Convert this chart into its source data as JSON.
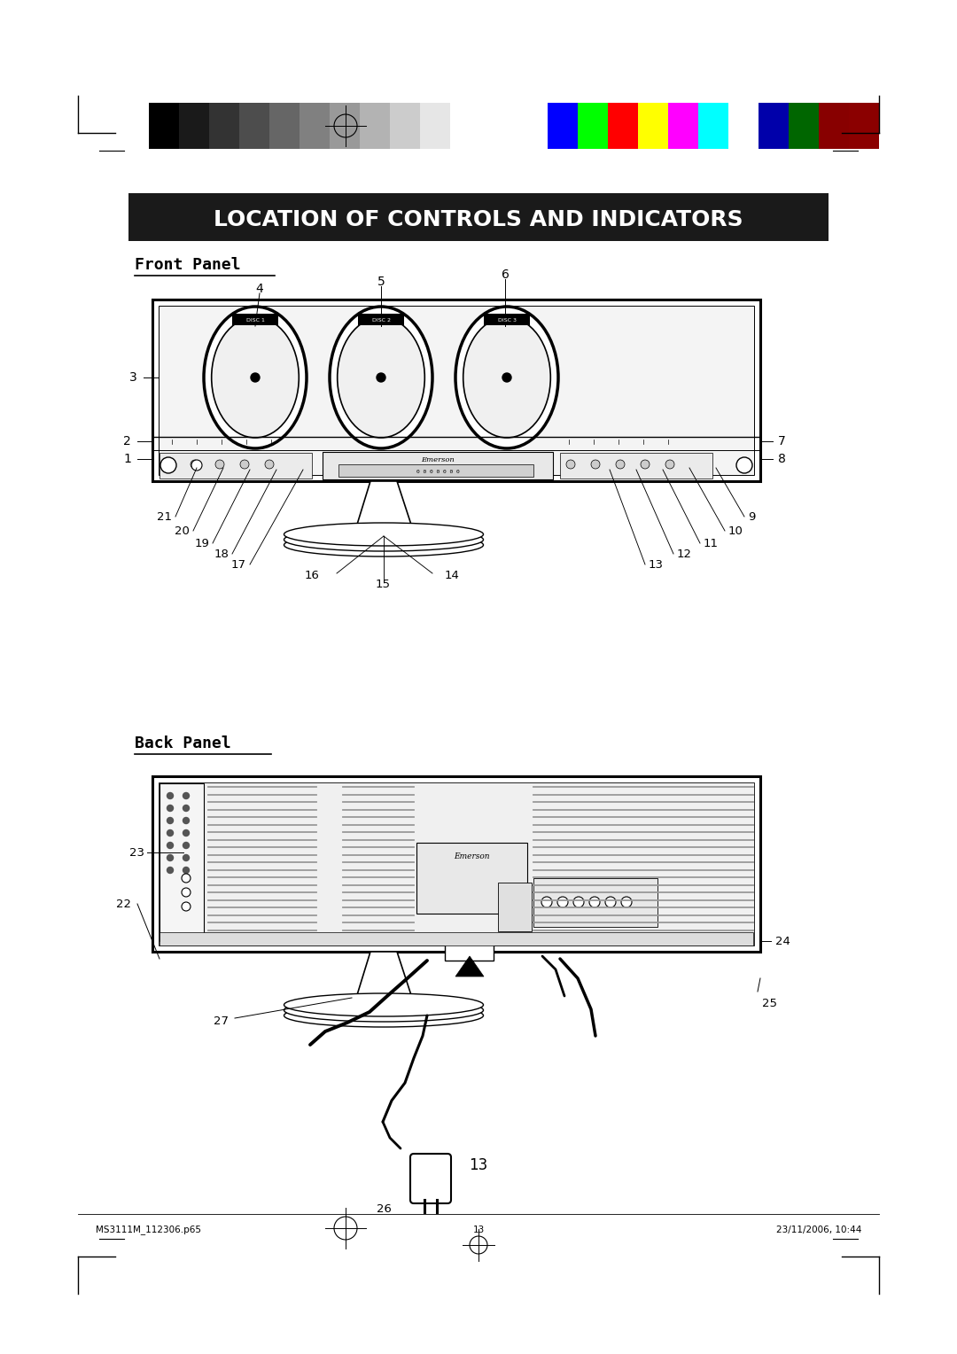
{
  "bg_color": "#ffffff",
  "page_width": 10.8,
  "page_height": 15.28,
  "title_text": "LOCATION OF CONTROLS AND INDICATORS",
  "title_bg": "#1a1a1a",
  "title_fg": "#ffffff",
  "title_fontsize": 18,
  "front_panel_label": "Front Panel",
  "back_panel_label": "Back Panel",
  "page_number": "13",
  "footer_left": "MS3111M_112306.p65",
  "footer_mid": "13",
  "footer_right": "23/11/2006, 10:44",
  "grayscale_colors": [
    "#000000",
    "#1a1a1a",
    "#333333",
    "#4d4d4d",
    "#666666",
    "#808080",
    "#999999",
    "#b3b3b3",
    "#cccccc",
    "#e6e6e6",
    "#ffffff"
  ],
  "color_bars": [
    "#0000ff",
    "#00ff00",
    "#ff0000",
    "#ffff00",
    "#ff00ff",
    "#00ffff",
    "#ffffff",
    "#0000aa",
    "#006600",
    "#880000",
    "#8b0000"
  ]
}
